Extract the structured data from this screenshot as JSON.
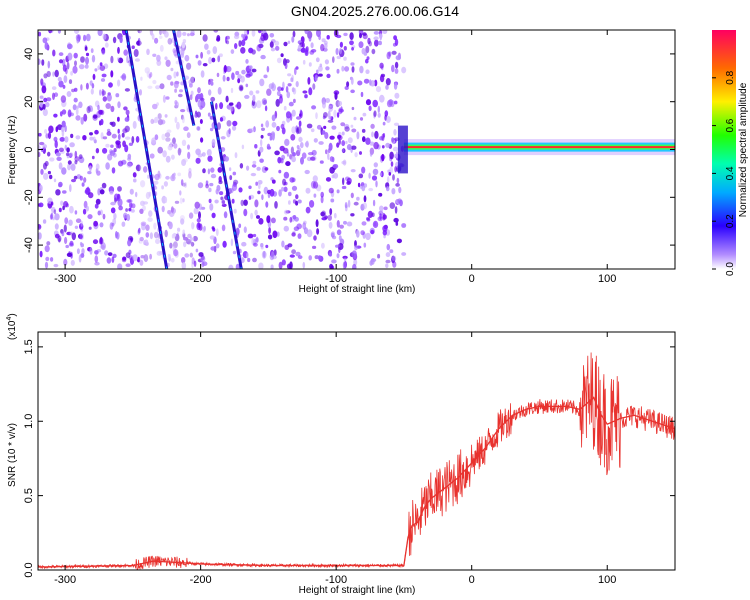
{
  "title": "GN04.2025.276.00.06.G14",
  "chart_data": [
    {
      "type": "heatmap",
      "xlabel": "Height of straight line (km)",
      "ylabel": "Frequency (Hz)",
      "xlim": [
        -320,
        150
      ],
      "ylim": [
        -50,
        50
      ],
      "x_ticks": [
        -300,
        -200,
        -100,
        0,
        100
      ],
      "x_tick_labels": [
        "-300",
        "-200",
        "-100",
        "0",
        "100"
      ],
      "y_ticks": [
        -40,
        -20,
        0,
        20,
        40
      ],
      "y_tick_labels": [
        "-40",
        "-20",
        "0",
        "20",
        "40"
      ],
      "noise_region_x": [
        -320,
        -50
      ],
      "signal_line": {
        "x_start": -50,
        "x_end": 150,
        "frequency_hz": 1
      },
      "diagonal_tracks": [
        {
          "x": [
            -255,
            -225
          ],
          "y": [
            50,
            -50
          ]
        },
        {
          "x": [
            -220,
            -205
          ],
          "y": [
            50,
            10
          ]
        },
        {
          "x": [
            -192,
            -170
          ],
          "y": [
            20,
            -50
          ]
        }
      ],
      "colorbar": {
        "label": "Normalized spectral amplitude",
        "range": [
          0,
          1
        ],
        "ticks": [
          0.0,
          0.2,
          0.4,
          0.6,
          0.8
        ],
        "tick_labels": [
          "0.0",
          "0.2",
          "0.4",
          "0.6",
          "0.8"
        ]
      }
    },
    {
      "type": "line",
      "xlabel": "Height of straight line (km)",
      "ylabel": "SNR (10 * v/v)",
      "scale_label": "(x10",
      "scale_exponent": "4",
      "xlim": [
        -320,
        150
      ],
      "ylim": [
        0,
        1.6
      ],
      "x_ticks": [
        -300,
        -200,
        -100,
        0,
        100
      ],
      "x_tick_labels": [
        "-300",
        "-200",
        "-100",
        "0",
        "100"
      ],
      "y_ticks": [
        0.0,
        0.5,
        1.0,
        1.5
      ],
      "y_tick_labels": [
        "0.0",
        "0.5",
        "1.0",
        "1.5"
      ],
      "series": [
        {
          "name": "SNR",
          "color": "#e8322e",
          "x": [
            -320,
            -250,
            -235,
            -215,
            -200,
            -150,
            -100,
            -50,
            -47,
            -44,
            -40,
            -35,
            -30,
            -20,
            -10,
            0,
            10,
            20,
            30,
            40,
            50,
            60,
            70,
            80,
            85,
            90,
            95,
            100,
            110,
            120,
            130,
            140,
            150
          ],
          "values": [
            0.02,
            0.03,
            0.06,
            0.05,
            0.04,
            0.03,
            0.03,
            0.03,
            0.22,
            0.3,
            0.32,
            0.42,
            0.48,
            0.55,
            0.62,
            0.72,
            0.82,
            0.95,
            1.04,
            1.08,
            1.1,
            1.1,
            1.1,
            1.08,
            1.12,
            1.16,
            1.05,
            0.98,
            1.02,
            1.04,
            1.01,
            0.98,
            0.95
          ]
        }
      ],
      "noise_x": [
        {
          "x": [
            -250,
            -210
          ],
          "amplitude": 0.04
        },
        {
          "x": [
            -47,
            0
          ],
          "amplitude": 0.18
        },
        {
          "x": [
            0,
            30
          ],
          "amplitude": 0.12
        },
        {
          "x": [
            30,
            80
          ],
          "amplitude": 0.05
        },
        {
          "x": [
            80,
            110
          ],
          "amplitude": 0.35
        },
        {
          "x": [
            110,
            150
          ],
          "amplitude": 0.08
        }
      ]
    }
  ]
}
